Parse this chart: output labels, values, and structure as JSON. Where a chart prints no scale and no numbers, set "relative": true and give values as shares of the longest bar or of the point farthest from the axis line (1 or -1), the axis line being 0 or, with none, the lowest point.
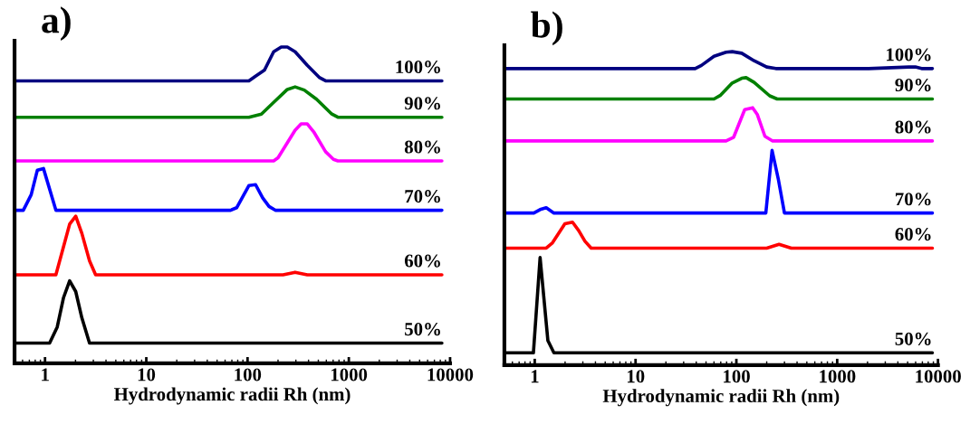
{
  "chart_data": [
    {
      "type": "line",
      "title": "a)",
      "xlabel": "Hydrodynamic radii Rh (nm)",
      "relative": true,
      "log": "x",
      "xlim": [
        0.5,
        10000
      ],
      "xticks": [
        1,
        10,
        100,
        1000,
        10000
      ],
      "grid": false,
      "legend": false,
      "marker": "none",
      "line_style": "solid",
      "series": [
        {
          "name": "100%",
          "color": "#000080",
          "x": [
            0.5,
            103,
            120,
            147,
            181,
            215,
            247,
            295,
            389,
            515,
            590,
            8300
          ],
          "values": [
            0.893,
            0.893,
            0.908,
            0.927,
            0.985,
            1.0,
            1.0,
            0.985,
            0.942,
            0.903,
            0.893,
            0.893
          ]
        },
        {
          "name": "90%",
          "color": "#008000",
          "x": [
            0.5,
            103,
            137,
            181,
            247,
            295,
            363,
            480,
            680,
            780,
            8300
          ],
          "values": [
            0.778,
            0.778,
            0.788,
            0.825,
            0.866,
            0.874,
            0.864,
            0.835,
            0.788,
            0.778,
            0.778
          ]
        },
        {
          "name": "80%",
          "color": "#ff00ff",
          "x": [
            0.5,
            181,
            200,
            295,
            338,
            389,
            450,
            590,
            705,
            780,
            8300
          ],
          "values": [
            0.64,
            0.64,
            0.65,
            0.737,
            0.757,
            0.757,
            0.732,
            0.669,
            0.645,
            0.64,
            0.64
          ]
        },
        {
          "name": "70%",
          "color": "#0000ff",
          "x": [
            0.5,
            0.61,
            0.73,
            0.84,
            0.965,
            1.28,
            68,
            78,
            103,
            120,
            141,
            163,
            188,
            8300
          ],
          "values": [
            0.484,
            0.484,
            0.533,
            0.611,
            0.616,
            0.484,
            0.484,
            0.492,
            0.562,
            0.565,
            0.523,
            0.496,
            0.484,
            0.484
          ]
        },
        {
          "name": "60%",
          "color": "#ff0000",
          "x": [
            0.5,
            1.28,
            1.75,
            2.01,
            2.31,
            2.75,
            3.16,
            224,
            295,
            389,
            8300
          ],
          "values": [
            0.28,
            0.28,
            0.44,
            0.465,
            0.411,
            0.324,
            0.28,
            0.28,
            0.288,
            0.28,
            0.28
          ]
        },
        {
          "name": "50%",
          "color": "#000000",
          "x": [
            0.52,
            1.11,
            1.32,
            1.52,
            1.75,
            2.01,
            2.31,
            2.75,
            8300
          ],
          "values": [
            0.064,
            0.064,
            0.115,
            0.207,
            0.261,
            0.227,
            0.144,
            0.064,
            0.064
          ]
        }
      ]
    },
    {
      "type": "line",
      "title": "b)",
      "xlabel": "Hydrodynamic radii Rh (nm)",
      "relative": true,
      "log": "x",
      "xlim": [
        0.5,
        10000
      ],
      "xticks": [
        1,
        10,
        100,
        1000,
        10000
      ],
      "grid": false,
      "legend": false,
      "marker": "none",
      "line_style": "solid",
      "series": [
        {
          "name": "100%",
          "color": "#000080",
          "x": [
            0.5,
            39,
            45,
            60,
            79,
            91,
            113,
            150,
            200,
            246,
            2050,
            5150,
            5960,
            6870,
            8800
          ],
          "values": [
            0.946,
            0.946,
            0.956,
            0.985,
            0.998,
            1.0,
            0.995,
            0.971,
            0.951,
            0.946,
            0.946,
            0.951,
            0.951,
            0.946,
            0.946
          ]
        },
        {
          "name": "90%",
          "color": "#008000",
          "x": [
            0.5,
            60,
            69,
            91,
            113,
            125,
            150,
            214,
            254,
            8800
          ],
          "values": [
            0.849,
            0.849,
            0.86,
            0.9,
            0.915,
            0.917,
            0.902,
            0.859,
            0.849,
            0.849
          ]
        },
        {
          "name": "80%",
          "color": "#ff00ff",
          "x": [
            0.5,
            79,
            94,
            121,
            145,
            161,
            192,
            229,
            8800
          ],
          "values": [
            0.715,
            0.715,
            0.727,
            0.815,
            0.821,
            0.8,
            0.73,
            0.715,
            0.715
          ]
        },
        {
          "name": "70%",
          "color": "#0000ff",
          "x": [
            0.5,
            0.98,
            1.13,
            1.3,
            1.55,
            196,
            226,
            260,
            300,
            8800
          ],
          "values": [
            0.485,
            0.485,
            0.496,
            0.502,
            0.485,
            0.485,
            0.685,
            0.595,
            0.485,
            0.485
          ]
        },
        {
          "name": "60%",
          "color": "#ff0000",
          "x": [
            0.5,
            1.3,
            1.5,
            1.99,
            2.37,
            2.73,
            3.15,
            3.63,
            200,
            265,
            351,
            8800
          ],
          "values": [
            0.373,
            0.373,
            0.39,
            0.451,
            0.456,
            0.429,
            0.395,
            0.373,
            0.373,
            0.385,
            0.373,
            0.373
          ]
        },
        {
          "name": "50%",
          "color": "#000000",
          "x": [
            0.5,
            0.97,
            1.13,
            1.35,
            1.55,
            8800
          ],
          "values": [
            0.039,
            0.039,
            0.343,
            0.078,
            0.039,
            0.039
          ]
        }
      ]
    }
  ]
}
